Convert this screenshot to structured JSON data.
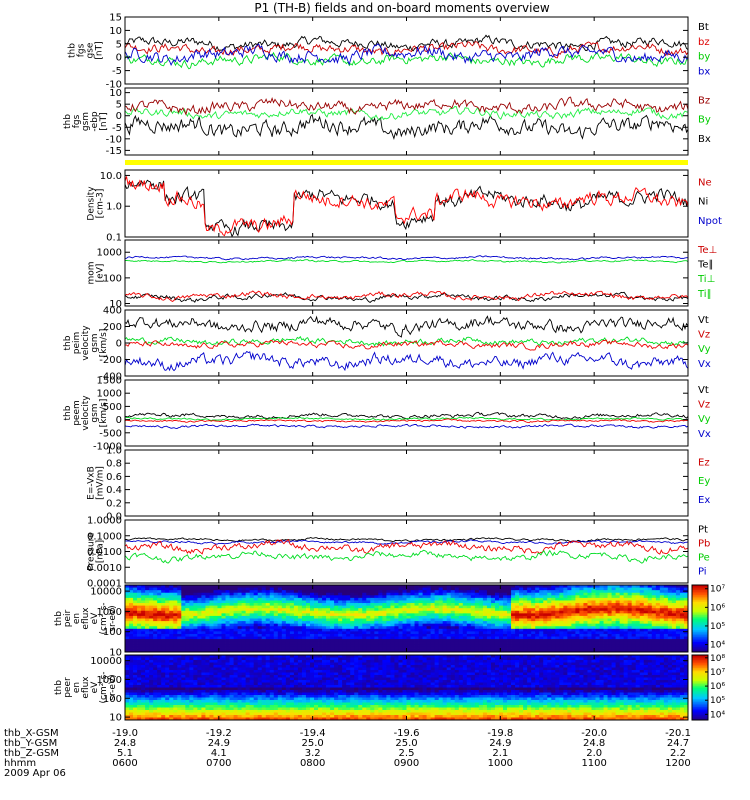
{
  "title": "P1 (TH-B) fields and on-board moments overview",
  "chart_data": {
    "type": "line",
    "panels": [
      {
        "id": "fgs",
        "ylabel": [
          "thb",
          "fgs",
          "gse",
          "[nT]"
        ],
        "ylim": [
          -10,
          15
        ],
        "ticks": [
          "15",
          "10",
          "5",
          "0",
          "-5",
          "-10"
        ],
        "tickvals": [
          15,
          10,
          5,
          0,
          -5,
          -10
        ],
        "log": false,
        "legend": [
          {
            "name": "Bt",
            "color": "#000000"
          },
          {
            "name": "bz",
            "color": "#dd0000"
          },
          {
            "name": "by",
            "color": "#00cc00"
          },
          {
            "name": "bx",
            "color": "#0000cc"
          }
        ],
        "series": [
          {
            "name": "Bt",
            "color": "#000000",
            "level": 5,
            "amp": 3
          },
          {
            "name": "bz",
            "color": "#cc0000",
            "level": 3,
            "amp": 3
          },
          {
            "name": "by",
            "color": "#00dd22",
            "level": -1,
            "amp": 3
          },
          {
            "name": "bx",
            "color": "#0000cc",
            "level": 1,
            "amp": 4
          }
        ]
      },
      {
        "id": "fgs_gsm",
        "ylabel": [
          "thb",
          "fgs",
          "gsm",
          "-ebp",
          "[nT]"
        ],
        "ylim": [
          -17,
          12
        ],
        "ticks": [
          "10",
          "5",
          "0",
          "-5",
          "-10",
          "-15"
        ],
        "tickvals": [
          10,
          5,
          0,
          -5,
          -10,
          -15
        ],
        "log": false,
        "legend": [
          {
            "name": "Bz",
            "color": "#990000"
          },
          {
            "name": "By",
            "color": "#00cc00"
          },
          {
            "name": "Bx",
            "color": "#000000"
          }
        ],
        "series": [
          {
            "name": "Bx",
            "color": "#000000",
            "level": -5,
            "amp": 6
          },
          {
            "name": "By",
            "color": "#22ee44",
            "level": 1,
            "amp": 3
          },
          {
            "name": "Bz",
            "color": "#990000",
            "level": 4,
            "amp": 4
          }
        ]
      },
      {
        "id": "density",
        "ylabel": [
          "Density",
          "[cm-3]"
        ],
        "ylim": [
          0.1,
          15
        ],
        "ticks": [
          "10.0",
          "1.0",
          "0.1"
        ],
        "tickvals": [
          10,
          1,
          0.1
        ],
        "log": true,
        "legend": [
          {
            "name": "Ne",
            "color": "#cc0000"
          },
          {
            "name": "Ni",
            "color": "#000000"
          },
          {
            "name": "Npot",
            "color": "#0000cc"
          }
        ],
        "series": [
          {
            "name": "Ni",
            "color": "#000000",
            "level": 0.3,
            "amp": 0.35
          },
          {
            "name": "Ne",
            "color": "#ff0000",
            "level": 0.3,
            "amp": 0.35
          }
        ]
      },
      {
        "id": "temp",
        "ylabel": [
          "mom",
          "[eV]"
        ],
        "ylim": [
          8,
          3000
        ],
        "ticks": [
          "1000",
          "100",
          "10"
        ],
        "tickvals": [
          1000,
          100,
          10
        ],
        "log": true,
        "legend": [
          {
            "name": "Te⊥",
            "color": "#cc0000"
          },
          {
            "name": "Te∥",
            "color": "#000000"
          },
          {
            "name": "Ti⊥",
            "color": "#00cc00"
          },
          {
            "name": "Ti∥",
            "color": "#00cc00"
          }
        ],
        "series": [
          {
            "name": "Ti⊥",
            "color": "#0000cc",
            "level": 2.78,
            "amp": 0.06
          },
          {
            "name": "Ti∥",
            "color": "#00dd22",
            "level": 2.65,
            "amp": 0.05
          },
          {
            "name": "Te⊥",
            "color": "#000000",
            "level": 1.25,
            "amp": 0.15
          },
          {
            "name": "Te∥",
            "color": "#ee0000",
            "level": 1.3,
            "amp": 0.15
          }
        ]
      },
      {
        "id": "peim",
        "ylabel": [
          "thb",
          "peim",
          "velocity",
          "gsm",
          "[km/s]"
        ],
        "ylim": [
          -400,
          400
        ],
        "ticks": [
          "400",
          "200",
          "0",
          "-200",
          "-400"
        ],
        "tickvals": [
          400,
          200,
          0,
          -200,
          -400
        ],
        "log": false,
        "legend": [
          {
            "name": "Vt",
            "color": "#000000"
          },
          {
            "name": "Vz",
            "color": "#cc0000"
          },
          {
            "name": "Vy",
            "color": "#00cc00"
          },
          {
            "name": "Vx",
            "color": "#0000cc"
          }
        ],
        "series": [
          {
            "name": "Vt",
            "color": "#000000",
            "level": 220,
            "amp": 120
          },
          {
            "name": "Vy",
            "color": "#00dd22",
            "level": 20,
            "amp": 60
          },
          {
            "name": "Vz",
            "color": "#ee0000",
            "level": -20,
            "amp": 60
          },
          {
            "name": "Vx",
            "color": "#0000cc",
            "level": -220,
            "amp": 120
          }
        ]
      },
      {
        "id": "peem",
        "ylabel": [
          "thb",
          "peem",
          "velocity",
          "gsm",
          "[km/s]"
        ],
        "ylim": [
          -1000,
          1500
        ],
        "ticks": [
          "1500",
          "1000",
          "500",
          "0",
          "-500",
          "-1000"
        ],
        "tickvals": [
          1500,
          1000,
          500,
          0,
          -500,
          -1000
        ],
        "log": false,
        "legend": [
          {
            "name": "Vt",
            "color": "#000000"
          },
          {
            "name": "Vz",
            "color": "#cc0000"
          },
          {
            "name": "Vy",
            "color": "#00cc00"
          },
          {
            "name": "Vx",
            "color": "#0000cc"
          }
        ],
        "series": [
          {
            "name": "Vt",
            "color": "#000000",
            "level": 150,
            "amp": 120
          },
          {
            "name": "Vy",
            "color": "#00dd22",
            "level": 30,
            "amp": 60
          },
          {
            "name": "Vz",
            "color": "#ee0000",
            "level": -50,
            "amp": 60
          },
          {
            "name": "Vx",
            "color": "#0000cc",
            "level": -250,
            "amp": 80
          }
        ]
      },
      {
        "id": "efield",
        "ylabel": [
          "E=-VxB",
          "[mV/m]"
        ],
        "ylim": [
          0,
          1
        ],
        "ticks": [
          "1.0",
          "0.8",
          "0.6",
          "0.4",
          "0.2",
          "0.0"
        ],
        "tickvals": [
          1,
          0.8,
          0.6,
          0.4,
          0.2,
          0
        ],
        "log": false,
        "legend": [
          {
            "name": "Ez",
            "color": "#cc0000"
          },
          {
            "name": "Ey",
            "color": "#00cc00"
          },
          {
            "name": "Ex",
            "color": "#0000cc"
          }
        ],
        "series": []
      },
      {
        "id": "pressure",
        "ylabel": [
          "Pressure",
          "[nPa]"
        ],
        "ylim": [
          0.0001,
          1
        ],
        "ticks": [
          "1.0000",
          "0.1000",
          "0.0100",
          "0.0010",
          "0.0001"
        ],
        "tickvals": [
          1,
          0.1,
          0.01,
          0.001,
          0.0001
        ],
        "log": true,
        "legend": [
          {
            "name": "Pt",
            "color": "#000000"
          },
          {
            "name": "Pb",
            "color": "#cc0000"
          },
          {
            "name": "Pe",
            "color": "#00cc00"
          },
          {
            "name": "Pi",
            "color": "#0000cc"
          }
        ],
        "series": [
          {
            "name": "Pt",
            "color": "#000000",
            "level": -1.25,
            "amp": 0.1
          },
          {
            "name": "Pi",
            "color": "#0000cc",
            "level": -1.4,
            "amp": 0.1
          },
          {
            "name": "Pb",
            "color": "#ee0000",
            "level": -1.7,
            "amp": 0.35
          },
          {
            "name": "Pe",
            "color": "#00dd22",
            "level": -2.3,
            "amp": 0.3
          }
        ]
      },
      {
        "id": "peir",
        "ylabel": [
          "thb",
          "peir",
          "en",
          "eflux",
          "eV",
          "(cm²-s-",
          "sr-eV)"
        ],
        "ylim": [
          10,
          20000
        ],
        "ticks": [
          "10000",
          "1000",
          "100",
          "10"
        ],
        "tickvals": [
          10000,
          1000,
          100,
          10
        ],
        "log": true,
        "spectrogram": true,
        "colorbar": {
          "ticks": [
            "10⁷",
            "10⁶",
            "10⁵",
            "10⁴"
          ],
          "tickvals": [
            7,
            6,
            5,
            4
          ],
          "range": [
            3.6,
            7.2
          ]
        }
      },
      {
        "id": "peer",
        "ylabel": [
          "thb",
          "peer",
          "en",
          "eflux",
          "eV",
          "(cm²-s-",
          "sr-eV)"
        ],
        "ylim": [
          7,
          20000
        ],
        "ticks": [
          "10000",
          "1000",
          "100",
          "10"
        ],
        "tickvals": [
          10000,
          1000,
          100,
          10
        ],
        "log": true,
        "spectrogram": true,
        "colorbar": {
          "ticks": [
            "10⁸",
            "10⁷",
            "10⁶",
            "10⁵",
            "10⁴"
          ],
          "tickvals": [
            8,
            7,
            6,
            5,
            4
          ],
          "range": [
            3.6,
            8.2
          ]
        }
      }
    ],
    "xaxis": {
      "rows": [
        {
          "label": "thb_X-GSM",
          "values": [
            "-19.0",
            "-19.2",
            "-19.4",
            "-19.6",
            "-19.8",
            "-20.0",
            "-20.1"
          ]
        },
        {
          "label": "thb_Y-GSM",
          "values": [
            "24.8",
            "24.9",
            "25.0",
            "25.0",
            "24.9",
            "24.8",
            "24.7"
          ]
        },
        {
          "label": "thb_Z-GSM",
          "values": [
            "5.1",
            "4.1",
            "3.2",
            "2.5",
            "2.1",
            "2.0",
            "2.2"
          ]
        },
        {
          "label": "hhmm",
          "values": [
            "0600",
            "0700",
            "0800",
            "0900",
            "1000",
            "1100",
            "1200"
          ]
        }
      ],
      "date": "2009 Apr 06"
    }
  }
}
